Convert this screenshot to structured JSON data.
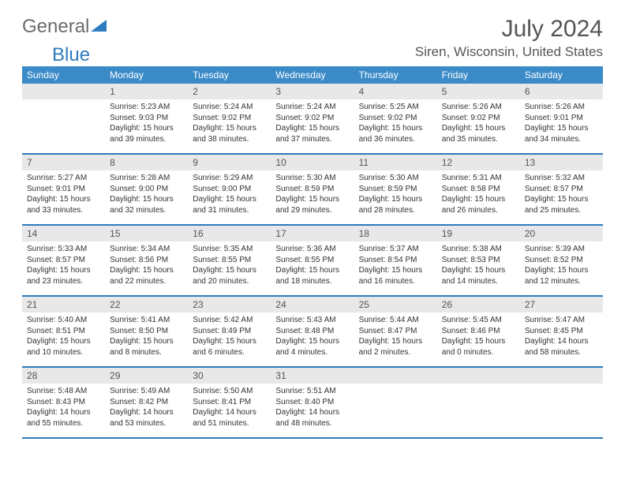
{
  "logo": {
    "text_gray": "General",
    "text_blue": "Blue"
  },
  "title": "July 2024",
  "location": "Siren, Wisconsin, United States",
  "colors": {
    "header_bg": "#3b8bc8",
    "header_text": "#ffffff",
    "daynum_bg": "#e8e8e8",
    "border": "#2e7cc0",
    "body_text": "#333333",
    "title_text": "#555555"
  },
  "weekdays": [
    "Sunday",
    "Monday",
    "Tuesday",
    "Wednesday",
    "Thursday",
    "Friday",
    "Saturday"
  ],
  "weeks": [
    [
      null,
      {
        "n": "1",
        "sr": "5:23 AM",
        "ss": "9:03 PM",
        "dl": "15 hours and 39 minutes."
      },
      {
        "n": "2",
        "sr": "5:24 AM",
        "ss": "9:02 PM",
        "dl": "15 hours and 38 minutes."
      },
      {
        "n": "3",
        "sr": "5:24 AM",
        "ss": "9:02 PM",
        "dl": "15 hours and 37 minutes."
      },
      {
        "n": "4",
        "sr": "5:25 AM",
        "ss": "9:02 PM",
        "dl": "15 hours and 36 minutes."
      },
      {
        "n": "5",
        "sr": "5:26 AM",
        "ss": "9:02 PM",
        "dl": "15 hours and 35 minutes."
      },
      {
        "n": "6",
        "sr": "5:26 AM",
        "ss": "9:01 PM",
        "dl": "15 hours and 34 minutes."
      }
    ],
    [
      {
        "n": "7",
        "sr": "5:27 AM",
        "ss": "9:01 PM",
        "dl": "15 hours and 33 minutes."
      },
      {
        "n": "8",
        "sr": "5:28 AM",
        "ss": "9:00 PM",
        "dl": "15 hours and 32 minutes."
      },
      {
        "n": "9",
        "sr": "5:29 AM",
        "ss": "9:00 PM",
        "dl": "15 hours and 31 minutes."
      },
      {
        "n": "10",
        "sr": "5:30 AM",
        "ss": "8:59 PM",
        "dl": "15 hours and 29 minutes."
      },
      {
        "n": "11",
        "sr": "5:30 AM",
        "ss": "8:59 PM",
        "dl": "15 hours and 28 minutes."
      },
      {
        "n": "12",
        "sr": "5:31 AM",
        "ss": "8:58 PM",
        "dl": "15 hours and 26 minutes."
      },
      {
        "n": "13",
        "sr": "5:32 AM",
        "ss": "8:57 PM",
        "dl": "15 hours and 25 minutes."
      }
    ],
    [
      {
        "n": "14",
        "sr": "5:33 AM",
        "ss": "8:57 PM",
        "dl": "15 hours and 23 minutes."
      },
      {
        "n": "15",
        "sr": "5:34 AM",
        "ss": "8:56 PM",
        "dl": "15 hours and 22 minutes."
      },
      {
        "n": "16",
        "sr": "5:35 AM",
        "ss": "8:55 PM",
        "dl": "15 hours and 20 minutes."
      },
      {
        "n": "17",
        "sr": "5:36 AM",
        "ss": "8:55 PM",
        "dl": "15 hours and 18 minutes."
      },
      {
        "n": "18",
        "sr": "5:37 AM",
        "ss": "8:54 PM",
        "dl": "15 hours and 16 minutes."
      },
      {
        "n": "19",
        "sr": "5:38 AM",
        "ss": "8:53 PM",
        "dl": "15 hours and 14 minutes."
      },
      {
        "n": "20",
        "sr": "5:39 AM",
        "ss": "8:52 PM",
        "dl": "15 hours and 12 minutes."
      }
    ],
    [
      {
        "n": "21",
        "sr": "5:40 AM",
        "ss": "8:51 PM",
        "dl": "15 hours and 10 minutes."
      },
      {
        "n": "22",
        "sr": "5:41 AM",
        "ss": "8:50 PM",
        "dl": "15 hours and 8 minutes."
      },
      {
        "n": "23",
        "sr": "5:42 AM",
        "ss": "8:49 PM",
        "dl": "15 hours and 6 minutes."
      },
      {
        "n": "24",
        "sr": "5:43 AM",
        "ss": "8:48 PM",
        "dl": "15 hours and 4 minutes."
      },
      {
        "n": "25",
        "sr": "5:44 AM",
        "ss": "8:47 PM",
        "dl": "15 hours and 2 minutes."
      },
      {
        "n": "26",
        "sr": "5:45 AM",
        "ss": "8:46 PM",
        "dl": "15 hours and 0 minutes."
      },
      {
        "n": "27",
        "sr": "5:47 AM",
        "ss": "8:45 PM",
        "dl": "14 hours and 58 minutes."
      }
    ],
    [
      {
        "n": "28",
        "sr": "5:48 AM",
        "ss": "8:43 PM",
        "dl": "14 hours and 55 minutes."
      },
      {
        "n": "29",
        "sr": "5:49 AM",
        "ss": "8:42 PM",
        "dl": "14 hours and 53 minutes."
      },
      {
        "n": "30",
        "sr": "5:50 AM",
        "ss": "8:41 PM",
        "dl": "14 hours and 51 minutes."
      },
      {
        "n": "31",
        "sr": "5:51 AM",
        "ss": "8:40 PM",
        "dl": "14 hours and 48 minutes."
      },
      null,
      null,
      null
    ]
  ],
  "labels": {
    "sunrise_prefix": "Sunrise: ",
    "sunset_prefix": "Sunset: ",
    "daylight_prefix": "Daylight: "
  }
}
